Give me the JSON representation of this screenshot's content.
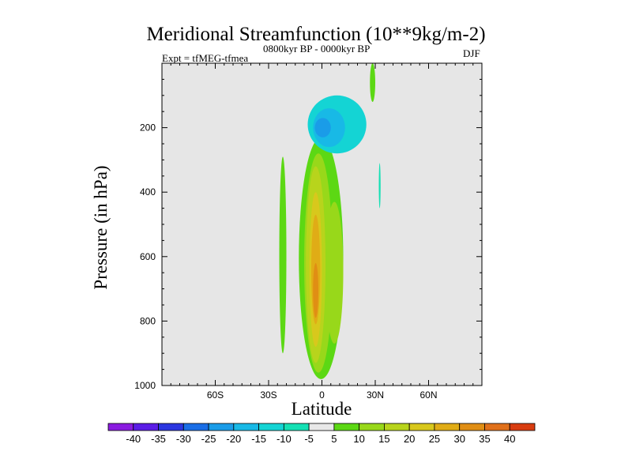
{
  "chart_data": {
    "type": "contour",
    "title": "Meridional Streamfunction (10**9kg/m-2)",
    "experiment": "Expt = tfMEG-tfmea",
    "period": "0800kyr BP - 0000kyr BP",
    "season": "DJF",
    "xlabel": "Latitude",
    "ylabel": "Pressure (in hPa)",
    "xlim": [
      -90,
      90
    ],
    "ylim": [
      1000,
      0
    ],
    "x_ticks": [
      {
        "value": -60,
        "label": "60S"
      },
      {
        "value": -30,
        "label": "30S"
      },
      {
        "value": 0,
        "label": "0"
      },
      {
        "value": 30,
        "label": "30N"
      },
      {
        "value": 60,
        "label": "60N"
      }
    ],
    "y_ticks": [
      {
        "value": 200,
        "label": "200"
      },
      {
        "value": 400,
        "label": "400"
      },
      {
        "value": 600,
        "label": "600"
      },
      {
        "value": 800,
        "label": "800"
      },
      {
        "value": 1000,
        "label": "1000"
      }
    ],
    "colorbar": {
      "labels": [
        "-40",
        "-35",
        "-30",
        "-25",
        "-20",
        "-15",
        "-10",
        "-5",
        "5",
        "10",
        "15",
        "20",
        "25",
        "30",
        "35",
        "40"
      ],
      "colors": [
        "#8a1be0",
        "#5b1de6",
        "#2b36e0",
        "#1a6ee6",
        "#1a9ce8",
        "#18b9e6",
        "#14d4d4",
        "#14e0b4",
        "#e8e8e8",
        "#5cd814",
        "#98d81a",
        "#b8d41c",
        "#d8c81c",
        "#e0ac16",
        "#e08e14",
        "#e0701a",
        "#d83c10"
      ]
    },
    "regions": [
      {
        "name": "green-cell-sh-west",
        "level": 5,
        "lat_range": [
          -24,
          -20
        ],
        "p_range": [
          290,
          900
        ],
        "color": "#5cd814"
      },
      {
        "name": "green-cell-main",
        "level": 5,
        "lat_range": [
          -13,
          12
        ],
        "p_range": [
          230,
          980
        ],
        "color": "#5cd814"
      },
      {
        "name": "yellowgreen-cell-main",
        "level": 10,
        "lat_range": [
          -10,
          6
        ],
        "p_range": [
          280,
          960
        ],
        "color": "#98d81a"
      },
      {
        "name": "yellowgreen-cell-east",
        "level": 10,
        "lat_range": [
          2,
          12
        ],
        "p_range": [
          430,
          870
        ],
        "color": "#98d81a"
      },
      {
        "name": "yellow-cell-main",
        "level": 15,
        "lat_range": [
          -9,
          2
        ],
        "p_range": [
          320,
          930
        ],
        "color": "#b8d41c"
      },
      {
        "name": "gold-cell-main",
        "level": 20,
        "lat_range": [
          -7,
          0
        ],
        "p_range": [
          400,
          880
        ],
        "color": "#d8c81c"
      },
      {
        "name": "orange-cell-core",
        "level": 25,
        "lat_range": [
          -6,
          -1
        ],
        "p_range": [
          470,
          810
        ],
        "color": "#e0ac16"
      },
      {
        "name": "darkorange-cell-core",
        "level": 30,
        "lat_range": [
          -5,
          -2
        ],
        "p_range": [
          620,
          790
        ],
        "color": "#e08e14"
      },
      {
        "name": "teal-cell-upper",
        "level": -5,
        "lat_range": [
          -8,
          25
        ],
        "p_range": [
          100,
          280
        ],
        "color": "#14d4d4"
      },
      {
        "name": "lightblue-cell-upper",
        "level": -10,
        "lat_range": [
          -5,
          13
        ],
        "p_range": [
          140,
          260
        ],
        "color": "#18b9e6"
      },
      {
        "name": "blue-cell-upper",
        "level": -15,
        "lat_range": [
          -4,
          5
        ],
        "p_range": [
          170,
          230
        ],
        "color": "#1a9ce8"
      },
      {
        "name": "green-strip-upper-30n",
        "level": 5,
        "lat_range": [
          27,
          30
        ],
        "p_range": [
          0,
          120
        ],
        "color": "#5cd814"
      },
      {
        "name": "teal-strip-30n",
        "level": -5,
        "lat_range": [
          32,
          33
        ],
        "p_range": [
          310,
          450
        ],
        "color": "#14e0b4"
      }
    ]
  }
}
